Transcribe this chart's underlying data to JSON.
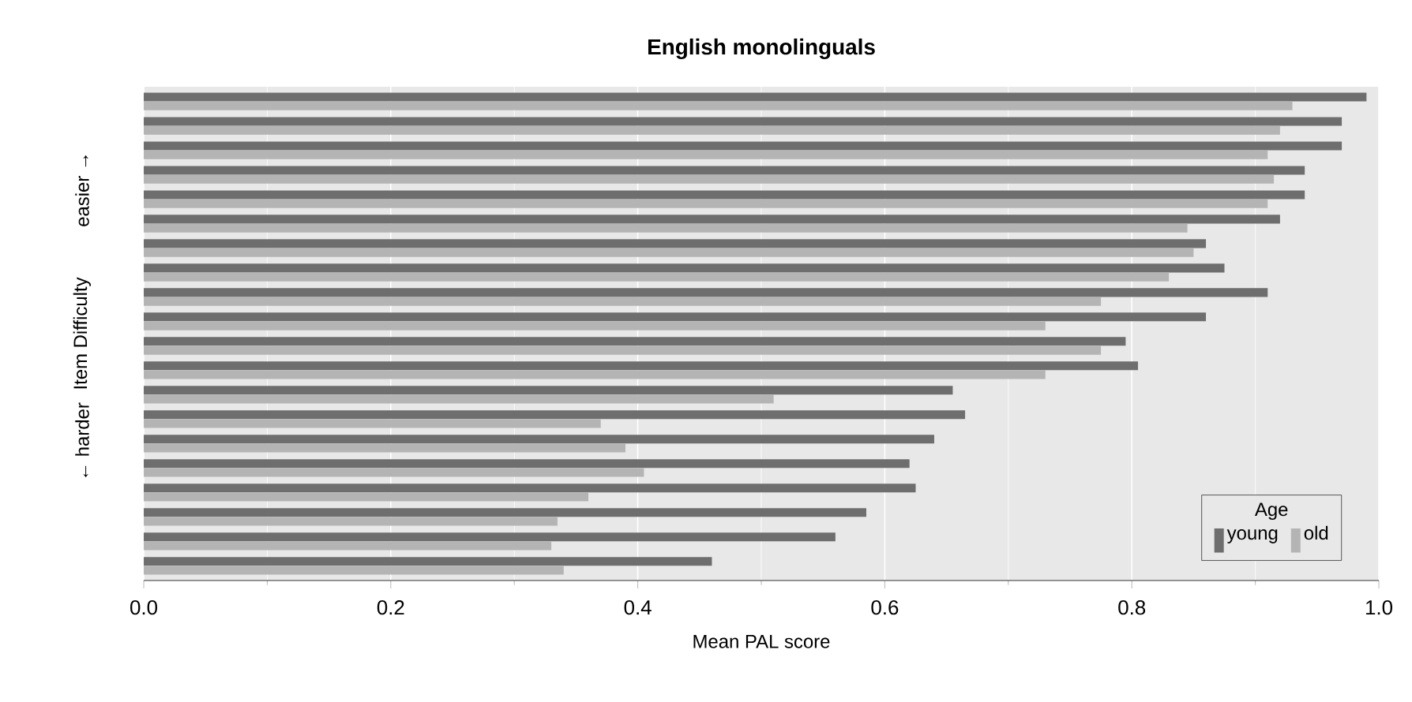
{
  "chart_data": {
    "type": "bar",
    "orientation": "horizontal",
    "title": "English monolinguals",
    "xlabel": "Mean PAL score",
    "ylabel": "Item Difficulty",
    "legend_title": "Age",
    "legend": "bottom right",
    "grid": "x",
    "annotations": [
      "easier →",
      "← harder"
    ],
    "categories": [
      null,
      null,
      null,
      null,
      null,
      null,
      null,
      null,
      null,
      null,
      null,
      null,
      null,
      null,
      null,
      null,
      null,
      null,
      null,
      null
    ],
    "xlim": [
      0,
      1
    ],
    "xticks": [
      {
        "value": 0,
        "label": "0.0"
      },
      {
        "value": 0.2,
        "label": "0.2"
      },
      {
        "value": 0.4,
        "label": "0.4"
      },
      {
        "value": 0.6,
        "label": "0.6"
      },
      {
        "value": 0.8,
        "label": "0.8"
      },
      {
        "value": 1,
        "label": "1.0"
      }
    ],
    "series": [
      {
        "name": "young",
        "color": "#6e6e6e",
        "values": [
          0.99,
          0.97,
          0.97,
          0.94,
          0.94,
          0.92,
          0.86,
          0.875,
          0.91,
          0.86,
          0.795,
          0.805,
          0.655,
          0.665,
          0.64,
          0.62,
          0.625,
          0.585,
          0.56,
          0.46
        ]
      },
      {
        "name": "old",
        "color": "#b4b4b4",
        "values": [
          0.93,
          0.92,
          0.91,
          0.915,
          0.91,
          0.845,
          0.85,
          0.83,
          0.775,
          0.73,
          0.775,
          0.73,
          0.51,
          0.37,
          0.39,
          0.405,
          0.36,
          0.335,
          0.33,
          0.34
        ]
      }
    ]
  }
}
